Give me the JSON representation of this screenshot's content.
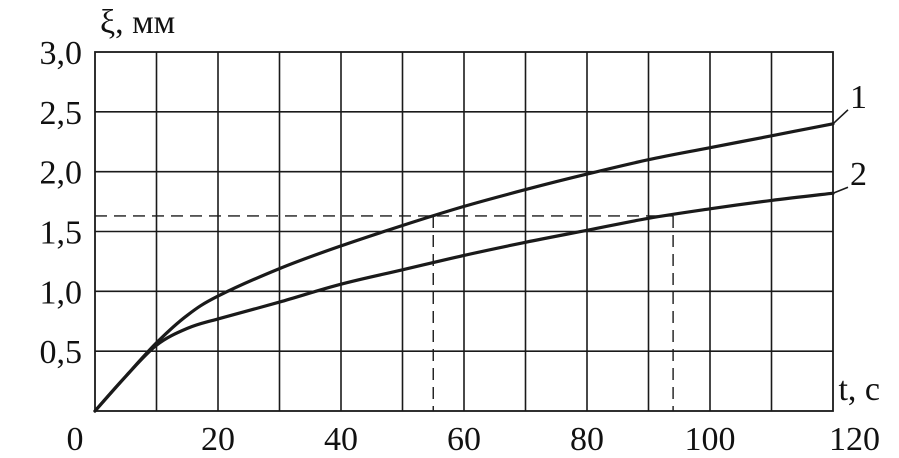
{
  "chart_data": {
    "type": "line",
    "title": "",
    "xlabel": "t, c",
    "ylabel": "ξ, мм",
    "xlim": [
      0,
      120
    ],
    "ylim": [
      0,
      3.0
    ],
    "x_ticks": [
      0,
      20,
      40,
      60,
      80,
      100,
      120
    ],
    "x_tick_labels": [
      "0",
      "20",
      "40",
      "60",
      "80",
      "100",
      "120"
    ],
    "y_ticks": [
      0.5,
      1.0,
      1.5,
      2.0,
      2.5,
      3.0
    ],
    "y_tick_labels": [
      "0,5",
      "1,0",
      "1,5",
      "2,0",
      "2,5",
      "3,0"
    ],
    "grid": true,
    "series": [
      {
        "name": "1",
        "x": [
          0,
          5,
          10,
          15,
          20,
          30,
          40,
          50,
          60,
          70,
          80,
          90,
          100,
          110,
          120
        ],
        "y": [
          0,
          0.29,
          0.57,
          0.8,
          0.96,
          1.19,
          1.38,
          1.55,
          1.71,
          1.85,
          1.98,
          2.1,
          2.2,
          2.3,
          2.4
        ]
      },
      {
        "name": "2",
        "x": [
          0,
          5,
          10,
          15,
          20,
          30,
          40,
          50,
          60,
          70,
          80,
          90,
          100,
          110,
          120
        ],
        "y": [
          0,
          0.29,
          0.55,
          0.69,
          0.77,
          0.91,
          1.06,
          1.18,
          1.3,
          1.41,
          1.51,
          1.61,
          1.69,
          1.76,
          1.82
        ]
      }
    ],
    "reference_lines": [
      {
        "y": 1.63,
        "x_intersections": [
          55,
          94
        ]
      }
    ]
  }
}
